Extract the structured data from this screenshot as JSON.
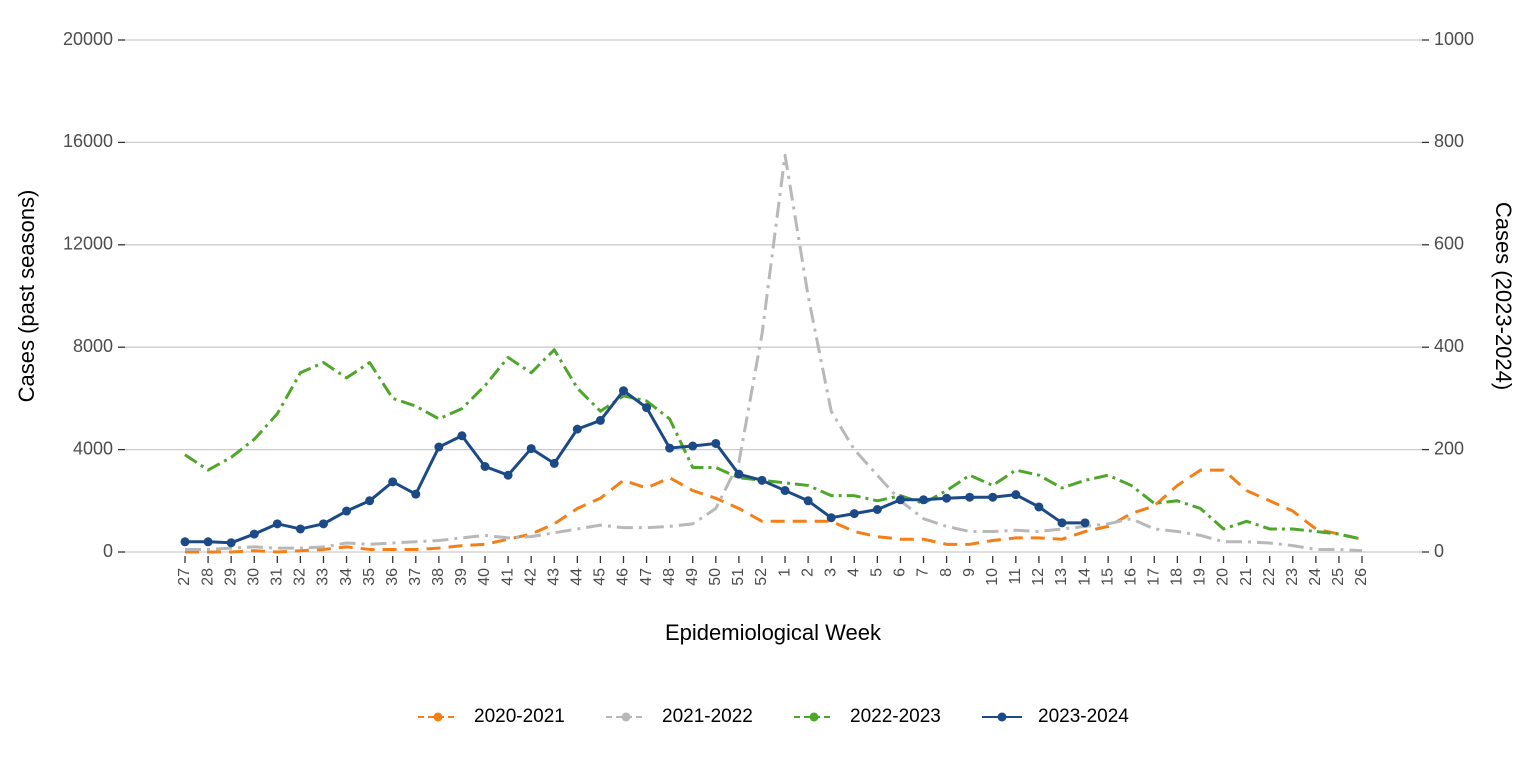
{
  "chart_data": {
    "type": "line",
    "x_label": "Epidemiological Week",
    "y_label": "Cases (past seasons)",
    "y2_label": "Cases (2023-2024)",
    "categories": [
      "27",
      "28",
      "29",
      "30",
      "31",
      "32",
      "33",
      "34",
      "35",
      "36",
      "37",
      "38",
      "39",
      "40",
      "41",
      "42",
      "43",
      "44",
      "45",
      "46",
      "47",
      "48",
      "49",
      "50",
      "51",
      "52",
      "1",
      "2",
      "3",
      "4",
      "5",
      "6",
      "7",
      "8",
      "9",
      "10",
      "11",
      "12",
      "13",
      "14",
      "15",
      "16",
      "17",
      "18",
      "19",
      "20",
      "21",
      "22",
      "23",
      "24",
      "25",
      "26"
    ],
    "ylim": [
      0,
      20000
    ],
    "yticks": [
      0,
      4000,
      8000,
      12000,
      16000,
      20000
    ],
    "y2lim": [
      0,
      1000
    ],
    "y2ticks": [
      0,
      200,
      400,
      600,
      800,
      1000
    ],
    "grid": true,
    "legend": "bottom",
    "series": [
      {
        "name": "2020-2021",
        "color": "#f57f17",
        "values": [
          0,
          0,
          0,
          50,
          0,
          50,
          100,
          200,
          100,
          100,
          100,
          150,
          250,
          300,
          500,
          700,
          1100,
          1700,
          2100,
          2800,
          2500,
          2900,
          2400,
          2100,
          1700,
          1200,
          1200,
          1200,
          1200,
          800,
          600,
          500,
          500,
          300,
          300,
          450,
          550,
          550,
          500,
          800,
          1000,
          1500,
          1800,
          2600,
          3200,
          3200,
          2400,
          2000,
          1600,
          900,
          700,
          500
        ]
      },
      {
        "name": "2021-2022",
        "color": "#b8b8b8",
        "values": [
          100,
          100,
          150,
          200,
          150,
          150,
          200,
          350,
          300,
          350,
          400,
          450,
          550,
          650,
          550,
          600,
          750,
          900,
          1050,
          950,
          950,
          1000,
          1100,
          1700,
          3500,
          8500,
          15500,
          10000,
          5500,
          4000,
          3000,
          2000,
          1300,
          1000,
          800,
          800,
          850,
          800,
          900,
          1000,
          1100,
          1300,
          900,
          800,
          650,
          400,
          400,
          350,
          250,
          100,
          100,
          50
        ]
      },
      {
        "name": "2022-2023",
        "color": "#4ea72a",
        "values": [
          3800,
          3200,
          3700,
          4400,
          5400,
          7000,
          7400,
          6800,
          7400,
          6000,
          5700,
          5200,
          5600,
          6500,
          7600,
          7000,
          7900,
          6400,
          5500,
          6100,
          5900,
          5200,
          3300,
          3300,
          2900,
          2800,
          2700,
          2600,
          2200,
          2200,
          2000,
          2200,
          1900,
          2400,
          3000,
          2600,
          3200,
          3000,
          2500,
          2800,
          3000,
          2600,
          1900,
          2000,
          1700,
          900,
          1200,
          900,
          900,
          800,
          700,
          500
        ]
      },
      {
        "name": "2023-2024",
        "color": "#1b4a87",
        "axis": "y2",
        "values": [
          20,
          20,
          18,
          35,
          55,
          45,
          55,
          80,
          100,
          137,
          113,
          205,
          227,
          167,
          150,
          202,
          173,
          240,
          257,
          315,
          282,
          203,
          207,
          212,
          152,
          140,
          120,
          100,
          67,
          75,
          83,
          102,
          102,
          105,
          107,
          107,
          112,
          88,
          57,
          57,
          null,
          null,
          null,
          null,
          null,
          null,
          null,
          null,
          null,
          null,
          null,
          null
        ]
      }
    ]
  }
}
